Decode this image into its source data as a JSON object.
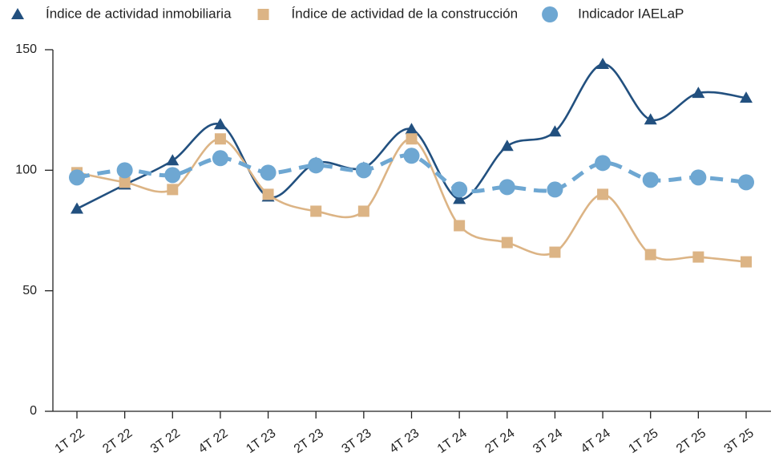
{
  "chart_data": {
    "type": "line",
    "categories": [
      "1T 22",
      "2T 22",
      "3T 22",
      "4T 22",
      "1T 23",
      "2T 23",
      "3T 23",
      "4T 23",
      "1T 24",
      "2T 24",
      "3T 24",
      "4T 24",
      "1T 25",
      "2T 25",
      "3T 25"
    ],
    "series": [
      {
        "name": "Índice de actividad inmobiliaria",
        "color": "#22507f",
        "marker": "triangle",
        "line_style": "solid",
        "values": [
          84,
          94,
          104,
          119,
          89,
          103,
          101,
          117,
          88,
          110,
          116,
          144,
          121,
          132,
          130
        ]
      },
      {
        "name": "Índice de actividad de la construcción",
        "color": "#dcb485",
        "marker": "square",
        "line_style": "solid",
        "values": [
          99,
          95,
          92,
          113,
          90,
          83,
          83,
          113,
          77,
          70,
          66,
          90,
          65,
          64,
          62
        ]
      },
      {
        "name": "Indicador IAELaP",
        "color": "#6ea7d2",
        "marker": "circle",
        "line_style": "dashed",
        "values": [
          97,
          100,
          98,
          105,
          99,
          102,
          100,
          106,
          92,
          93,
          92,
          103,
          96,
          97,
          95
        ]
      }
    ],
    "ylim": [
      0,
      150
    ],
    "yticks": [
      0,
      50,
      100,
      150
    ],
    "grid": false
  }
}
